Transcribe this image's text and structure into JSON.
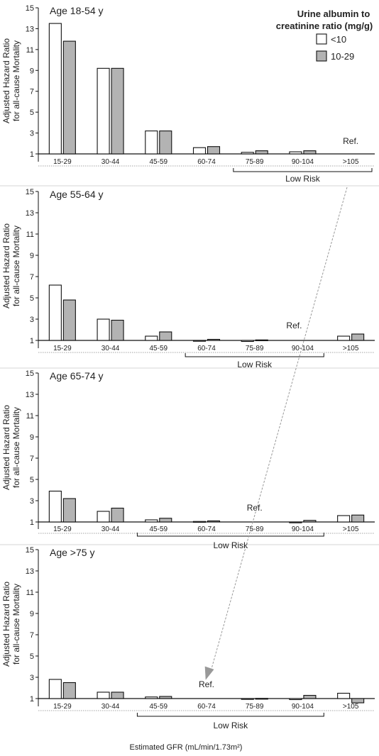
{
  "chart_data": {
    "type": "bar",
    "ylabel_lines": [
      "Adjusted Hazard Ratio",
      "for all-cause Mortality"
    ],
    "xlabel": "Estimated GFR (mL/min/1.73m²)",
    "legend": {
      "title_lines": [
        "Urine albumin to",
        "creatinine ratio  (mg/g)"
      ],
      "entries": [
        {
          "name": "<10",
          "color": "#ffffff"
        },
        {
          "name": "10-29",
          "color": "#b3b3b3"
        }
      ],
      "placement": "top-right"
    },
    "colors": {
      "series_1": "#ffffff",
      "series_2": "#b3b3b3",
      "outline": "#111111",
      "arrow": "#999999"
    },
    "categories": [
      "15-29",
      "30-44",
      "45-59",
      "60-74",
      "75-89",
      "90-104",
      ">105"
    ],
    "yticks": [
      1,
      3,
      5,
      7,
      9,
      11,
      13,
      15
    ],
    "ylim": [
      1,
      15
    ],
    "low_risk_label": "Low Risk",
    "ref_label": "Ref.",
    "panels": [
      {
        "title": "Age 18-54 y",
        "ref_category": ">105",
        "low_risk_range": [
          "75-89",
          ">105"
        ],
        "series": [
          {
            "name": "<10",
            "values": [
              13.5,
              9.2,
              3.2,
              1.6,
              1.15,
              1.2,
              null
            ]
          },
          {
            "name": "10-29",
            "values": [
              11.8,
              9.2,
              3.2,
              1.7,
              1.3,
              1.3,
              null
            ]
          }
        ]
      },
      {
        "title": "Age 55-64 y",
        "ref_category": "90-104",
        "low_risk_range": [
          "60-74",
          "90-104"
        ],
        "series": [
          {
            "name": "<10",
            "values": [
              6.2,
              3.0,
              1.4,
              0.95,
              0.9,
              null,
              1.4
            ]
          },
          {
            "name": "10-29",
            "values": [
              4.8,
              2.9,
              1.8,
              1.1,
              1.05,
              null,
              1.6
            ]
          }
        ]
      },
      {
        "title": "Age 65-74 y",
        "ref_category": "75-89",
        "low_risk_range": [
          "45-59",
          "90-104"
        ],
        "series": [
          {
            "name": "<10",
            "values": [
              3.9,
              2.0,
              1.2,
              1.05,
              null,
              0.95,
              1.6
            ]
          },
          {
            "name": "10-29",
            "values": [
              3.2,
              2.3,
              1.35,
              1.1,
              null,
              1.15,
              1.65
            ]
          }
        ]
      },
      {
        "title": "Age >75 y",
        "ref_category": "60-74",
        "low_risk_range": [
          "45-59",
          "90-104"
        ],
        "series": [
          {
            "name": "<10",
            "values": [
              2.8,
              1.6,
              1.15,
              null,
              0.95,
              0.9,
              1.5
            ]
          },
          {
            "name": "10-29",
            "values": [
              2.5,
              1.6,
              1.2,
              null,
              1.02,
              1.3,
              0.6
            ]
          }
        ]
      }
    ]
  }
}
